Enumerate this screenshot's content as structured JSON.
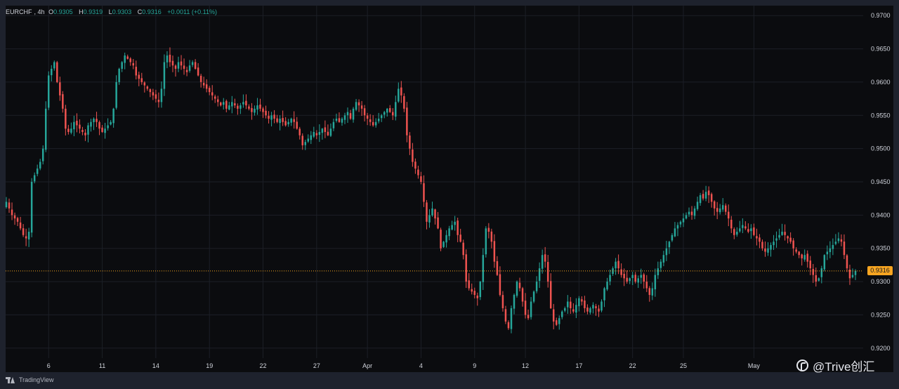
{
  "legend": {
    "symbol": "EURCHF",
    "interval": "4h",
    "o_label": "O",
    "o_value": "0.9305",
    "h_label": "H",
    "h_value": "0.9319",
    "l_label": "L",
    "l_value": "0.9303",
    "c_label": "C",
    "c_value": "0.9316",
    "change": "+0.0011 (+0.11%)"
  },
  "price_tag": "0.9316",
  "brand": "TradingView",
  "watermark": "@Trive创汇",
  "colors": {
    "background": "#0b0c0f",
    "grid": "#1c1f27",
    "up": "#26a69a",
    "down": "#ef5350",
    "axis_text": "#d1d4dc",
    "last_price": "#f7a521"
  },
  "chart_data": {
    "type": "candlestick",
    "title": "",
    "xlabel": "",
    "ylabel": "",
    "ylim": [
      0.9185,
      0.9715
    ],
    "y_ticks": [
      "0.9700",
      "0.9650",
      "0.9600",
      "0.9550",
      "0.9500",
      "0.9450",
      "0.9400",
      "0.9350",
      "0.9300",
      "0.9250",
      "0.9200"
    ],
    "x_ticks": [
      {
        "label": "6",
        "bar": 15
      },
      {
        "label": "11",
        "bar": 34
      },
      {
        "label": "14",
        "bar": 53
      },
      {
        "label": "19",
        "bar": 72
      },
      {
        "label": "22",
        "bar": 91
      },
      {
        "label": "27",
        "bar": 110
      },
      {
        "label": "Apr",
        "bar": 128
      },
      {
        "label": "4",
        "bar": 147
      },
      {
        "label": "9",
        "bar": 166
      },
      {
        "label": "12",
        "bar": 184
      },
      {
        "label": "17",
        "bar": 203
      },
      {
        "label": "22",
        "bar": 222
      },
      {
        "label": "25",
        "bar": 240
      },
      {
        "label": "May",
        "bar": 265
      }
    ],
    "last_price": 0.9316,
    "closes": [
      0.942,
      0.941,
      0.94,
      0.9395,
      0.939,
      0.938,
      0.937,
      0.9365,
      0.9375,
      0.945,
      0.946,
      0.947,
      0.948,
      0.95,
      0.956,
      0.961,
      0.962,
      0.963,
      0.96,
      0.958,
      0.956,
      0.953,
      0.9525,
      0.953,
      0.954,
      0.9535,
      0.953,
      0.9525,
      0.952,
      0.9535,
      0.954,
      0.9545,
      0.954,
      0.953,
      0.9525,
      0.953,
      0.9535,
      0.954,
      0.956,
      0.96,
      0.962,
      0.963,
      0.964,
      0.9635,
      0.963,
      0.9625,
      0.961,
      0.9605,
      0.96,
      0.9595,
      0.959,
      0.9585,
      0.958,
      0.9575,
      0.957,
      0.959,
      0.963,
      0.964,
      0.963,
      0.9625,
      0.962,
      0.963,
      0.9625,
      0.962,
      0.9615,
      0.9625,
      0.963,
      0.962,
      0.961,
      0.96,
      0.9595,
      0.959,
      0.9585,
      0.958,
      0.9575,
      0.957,
      0.9565,
      0.957,
      0.956,
      0.9565,
      0.957,
      0.9565,
      0.956,
      0.9565,
      0.957,
      0.9565,
      0.956,
      0.9555,
      0.956,
      0.9565,
      0.956,
      0.9555,
      0.955,
      0.9545,
      0.955,
      0.9545,
      0.954,
      0.9545,
      0.954,
      0.9535,
      0.954,
      0.9545,
      0.954,
      0.953,
      0.952,
      0.9505,
      0.951,
      0.9515,
      0.952,
      0.9525,
      0.952,
      0.9525,
      0.953,
      0.9525,
      0.952,
      0.953,
      0.954,
      0.9545,
      0.954,
      0.9545,
      0.955,
      0.9555,
      0.9545,
      0.956,
      0.957,
      0.9565,
      0.956,
      0.955,
      0.9545,
      0.954,
      0.9535,
      0.954,
      0.9545,
      0.955,
      0.9555,
      0.956,
      0.9555,
      0.955,
      0.957,
      0.959,
      0.958,
      0.956,
      0.952,
      0.95,
      0.948,
      0.947,
      0.946,
      0.945,
      0.942,
      0.939,
      0.94,
      0.941,
      0.9395,
      0.938,
      0.935,
      0.936,
      0.937,
      0.938,
      0.9385,
      0.939,
      0.937,
      0.936,
      0.934,
      0.93,
      0.929,
      0.9285,
      0.928,
      0.9275,
      0.93,
      0.934,
      0.938,
      0.9375,
      0.936,
      0.933,
      0.931,
      0.928,
      0.926,
      0.924,
      0.923,
      0.926,
      0.928,
      0.93,
      0.929,
      0.927,
      0.925,
      0.9245,
      0.927,
      0.9285,
      0.93,
      0.932,
      0.934,
      0.933,
      0.93,
      0.926,
      0.924,
      0.9235,
      0.9245,
      0.9255,
      0.926,
      0.927,
      0.926,
      0.9255,
      0.9265,
      0.9275,
      0.927,
      0.926,
      0.9255,
      0.926,
      0.9265,
      0.926,
      0.9255,
      0.927,
      0.929,
      0.93,
      0.931,
      0.932,
      0.933,
      0.932,
      0.931,
      0.9305,
      0.93,
      0.9305,
      0.931,
      0.93,
      0.9305,
      0.931,
      0.93,
      0.929,
      0.928,
      0.929,
      0.931,
      0.932,
      0.933,
      0.934,
      0.935,
      0.936,
      0.937,
      0.938,
      0.9385,
      0.939,
      0.9395,
      0.94,
      0.9405,
      0.94,
      0.941,
      0.942,
      0.943,
      0.9425,
      0.9435,
      0.943,
      0.942,
      0.941,
      0.9405,
      0.941,
      0.9415,
      0.9405,
      0.9395,
      0.938,
      0.937,
      0.9375,
      0.938,
      0.9385,
      0.938,
      0.9375,
      0.938,
      0.937,
      0.9365,
      0.936,
      0.935,
      0.9345,
      0.935,
      0.9355,
      0.936,
      0.9365,
      0.937,
      0.9375,
      0.937,
      0.9365,
      0.936,
      0.935,
      0.9345,
      0.934,
      0.9335,
      0.934,
      0.933,
      0.932,
      0.931,
      0.93,
      0.9305,
      0.932,
      0.934,
      0.9345,
      0.935,
      0.9355,
      0.936,
      0.9365,
      0.936,
      0.934,
      0.932,
      0.9305,
      0.931,
      0.9316
    ]
  }
}
